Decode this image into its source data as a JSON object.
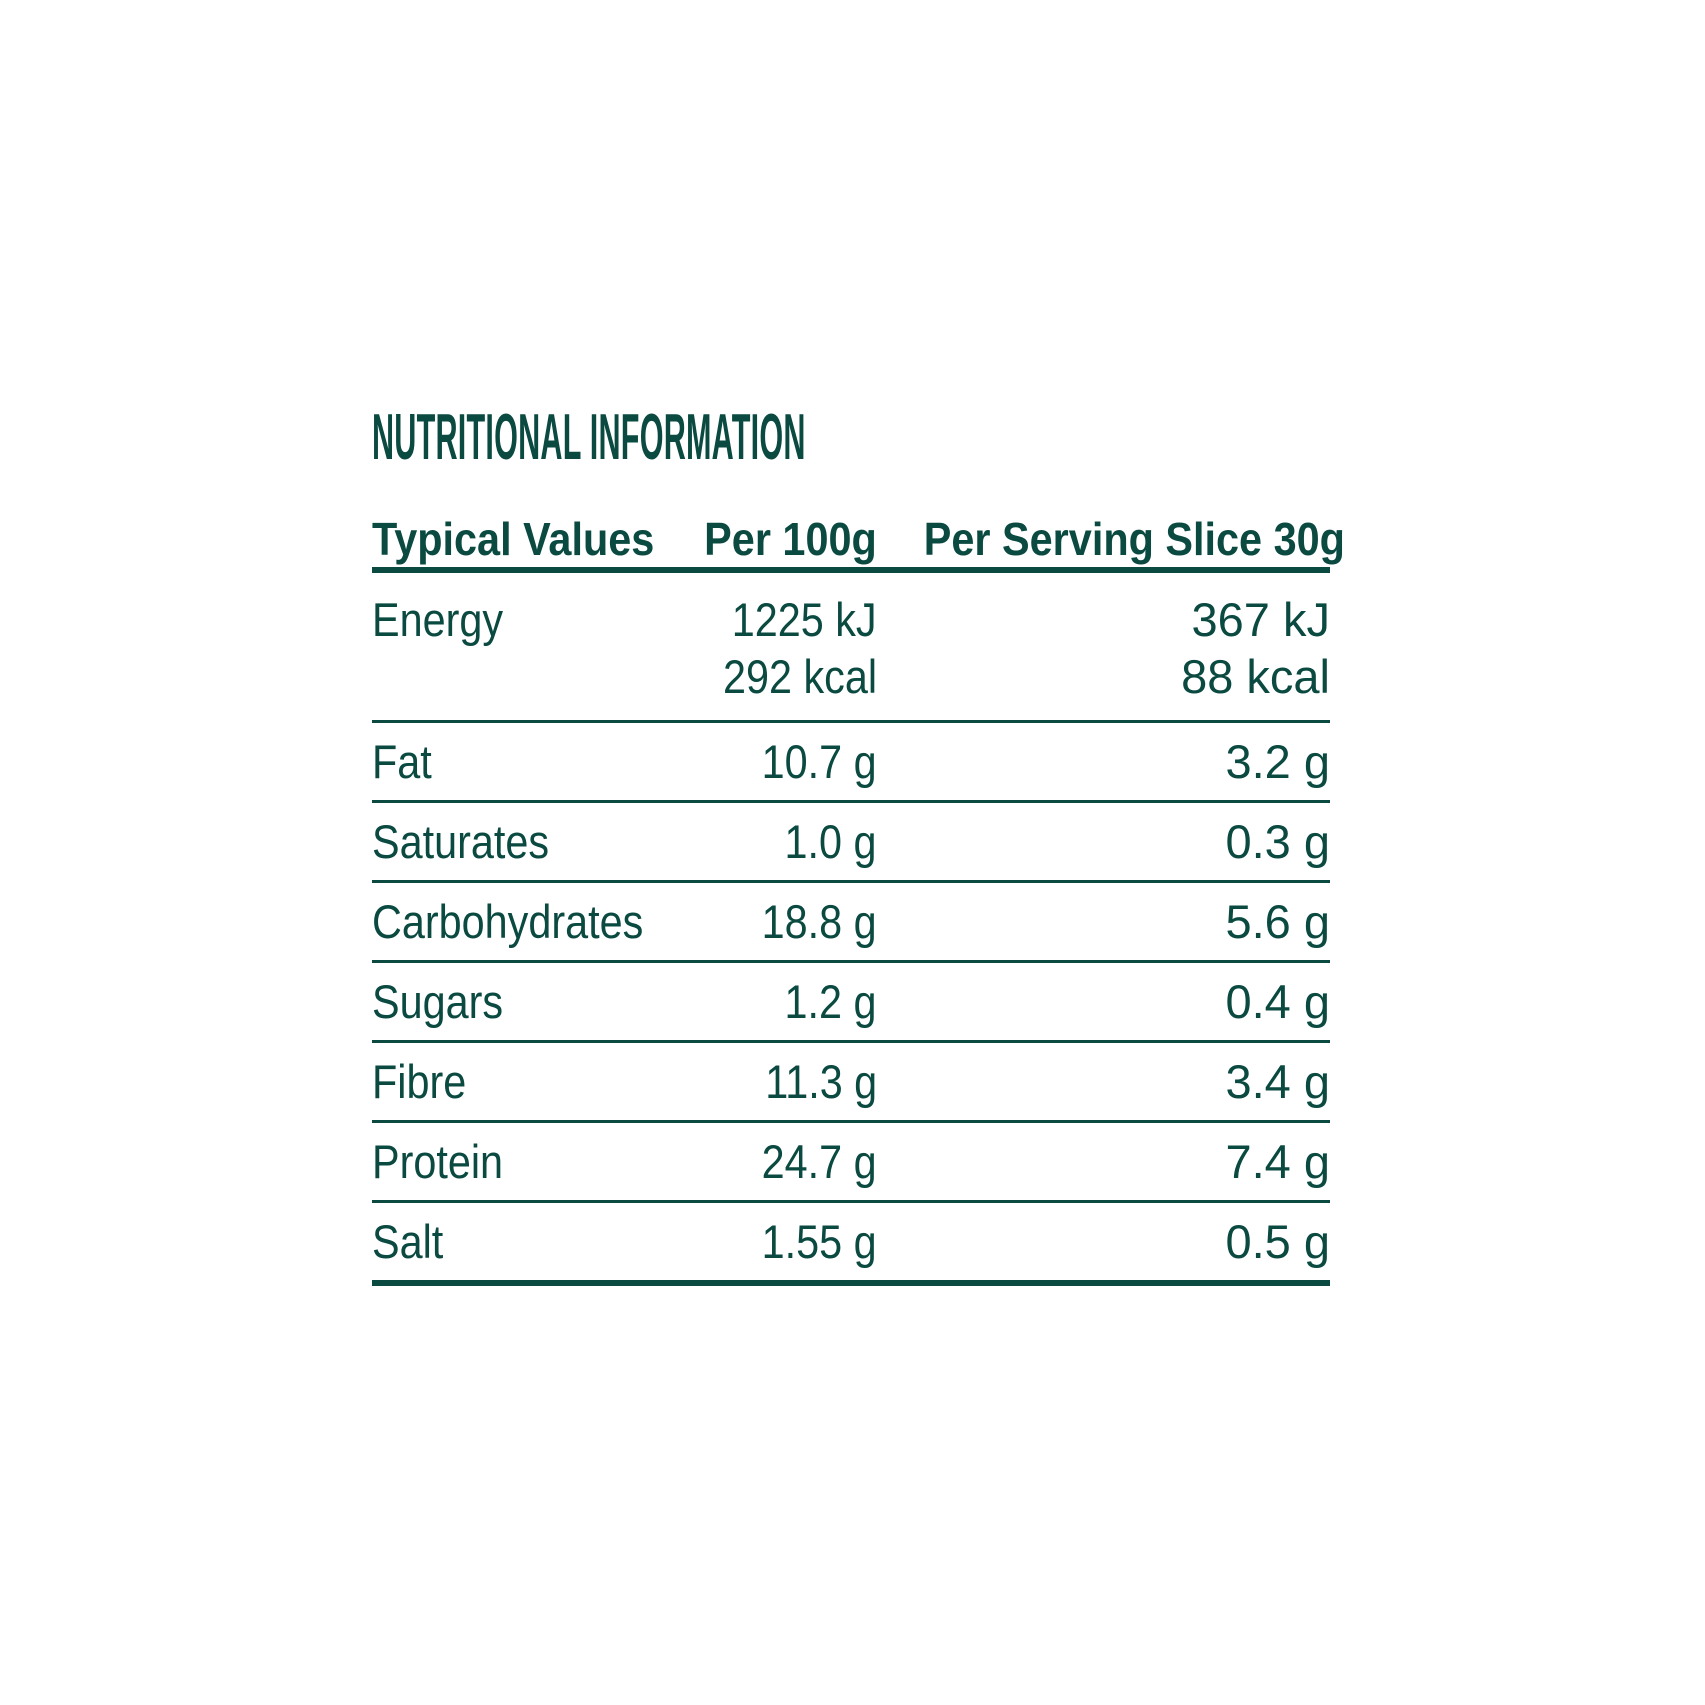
{
  "colors": {
    "ink": "#0A4A40",
    "background": "#FFFFFF"
  },
  "title": "NUTRITIONAL INFORMATION",
  "table": {
    "headers": {
      "col1": "Typical Values",
      "col2": "Per 100g",
      "col3": "Per Serving Slice 30g"
    },
    "rows": [
      {
        "label": "Energy",
        "per_100g": [
          "1225 kJ",
          "292 kcal"
        ],
        "per_serving": [
          "367 kJ",
          "88 kcal"
        ]
      },
      {
        "label": "Fat",
        "per_100g": "10.7 g",
        "per_serving": "3.2 g"
      },
      {
        "label": "Saturates",
        "per_100g": "1.0 g",
        "per_serving": "0.3 g"
      },
      {
        "label": "Carbohydrates",
        "per_100g": "18.8 g",
        "per_serving": "5.6 g"
      },
      {
        "label": "Sugars",
        "per_100g": "1.2 g",
        "per_serving": "0.4 g"
      },
      {
        "label": "Fibre",
        "per_100g": "11.3 g",
        "per_serving": "3.4 g"
      },
      {
        "label": "Protein",
        "per_100g": "24.7 g",
        "per_serving": "7.4 g"
      },
      {
        "label": "Salt",
        "per_100g": "1.55 g",
        "per_serving": "0.5 g"
      }
    ]
  }
}
